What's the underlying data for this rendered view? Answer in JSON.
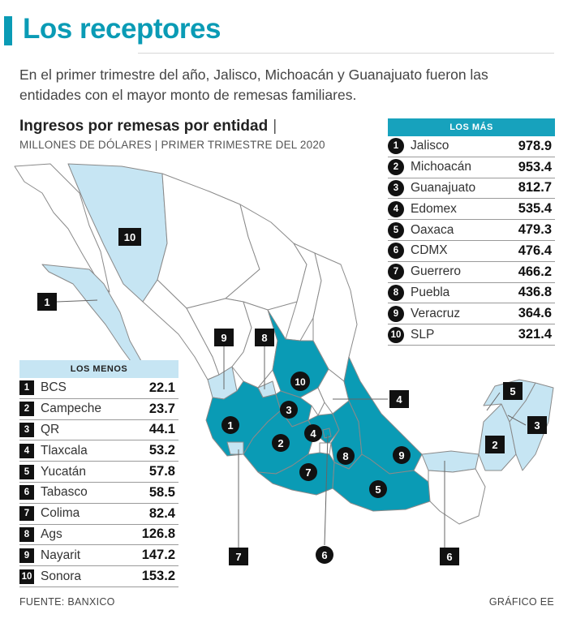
{
  "title": "Los receptores",
  "subtitle": "En el primer trimestre del año, Jalisco, Michoacán y Guanajuato fueron las entidades con el mayor monto de remesas familiares.",
  "chart_title": "Ingresos por remesas por entidad",
  "chart_title_sep": "|",
  "chart_subtitle": "MILLONES DE DÓLARES | PRIMER TRIMESTRE DEL 2020",
  "colors": {
    "accent": "#0a9bb5",
    "most": "#17a2bd",
    "least": "#c6e5f3",
    "other": "#ffffff",
    "badge": "#111111"
  },
  "chart_data": {
    "type": "table",
    "title": "Ingresos por remesas por entidad",
    "unit": "MILLONES DE DÓLARES",
    "period": "PRIMER TRIMESTRE DEL 2020",
    "tables": [
      {
        "header": "LOS MÁS",
        "rows": [
          {
            "rank": "1",
            "state": "Jalisco",
            "value": "978.9"
          },
          {
            "rank": "2",
            "state": "Michoacán",
            "value": "953.4"
          },
          {
            "rank": "3",
            "state": "Guanajuato",
            "value": "812.7"
          },
          {
            "rank": "4",
            "state": "Edomex",
            "value": "535.4"
          },
          {
            "rank": "5",
            "state": "Oaxaca",
            "value": "479.3"
          },
          {
            "rank": "6",
            "state": "CDMX",
            "value": "476.4"
          },
          {
            "rank": "7",
            "state": "Guerrero",
            "value": "466.2"
          },
          {
            "rank": "8",
            "state": "Puebla",
            "value": "436.8"
          },
          {
            "rank": "9",
            "state": "Veracruz",
            "value": "364.6"
          },
          {
            "rank": "10",
            "state": "SLP",
            "value": "321.4"
          }
        ]
      },
      {
        "header": "LOS MENOS",
        "rows": [
          {
            "rank": "1",
            "state": "BCS",
            "value": "22.1"
          },
          {
            "rank": "2",
            "state": "Campeche",
            "value": "23.7"
          },
          {
            "rank": "3",
            "state": "QR",
            "value": "44.1"
          },
          {
            "rank": "4",
            "state": "Tlaxcala",
            "value": "53.2"
          },
          {
            "rank": "5",
            "state": "Yucatán",
            "value": "57.8"
          },
          {
            "rank": "6",
            "state": "Tabasco",
            "value": "58.5"
          },
          {
            "rank": "7",
            "state": "Colima",
            "value": "82.4"
          },
          {
            "rank": "8",
            "state": "Ags",
            "value": "126.8"
          },
          {
            "rank": "9",
            "state": "Nayarit",
            "value": "147.2"
          },
          {
            "rank": "10",
            "state": "Sonora",
            "value": "153.2"
          }
        ]
      }
    ]
  },
  "map_labels": {
    "most": [
      "1",
      "2",
      "3",
      "4",
      "5",
      "6",
      "7",
      "8",
      "9",
      "10"
    ],
    "least": [
      "1",
      "2",
      "3",
      "4",
      "5",
      "6",
      "7",
      "8",
      "9",
      "10"
    ]
  },
  "footer": {
    "source": "FUENTE: BANXICO",
    "credit": "GRÁFICO EE"
  }
}
